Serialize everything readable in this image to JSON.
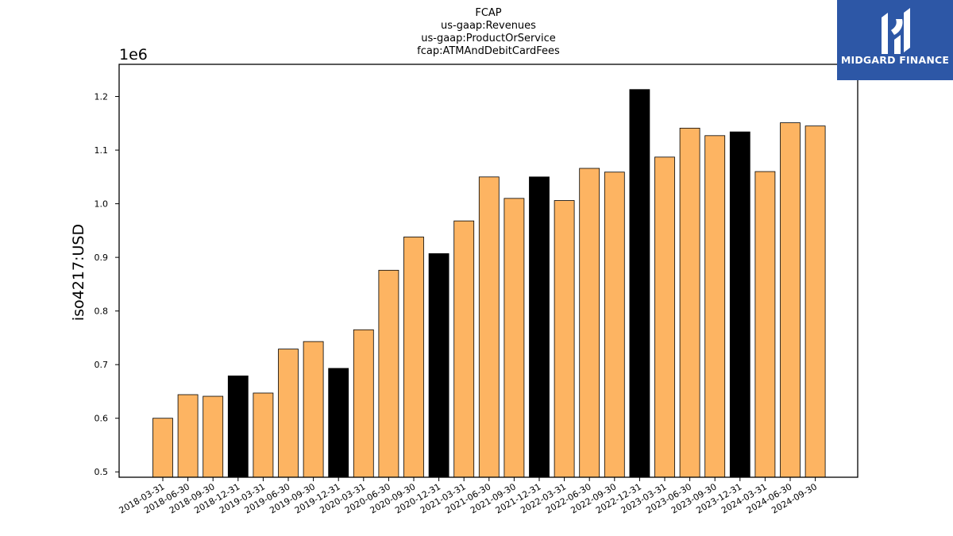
{
  "chart_data": {
    "type": "bar",
    "title": [
      "FCAP",
      "us-gaap:Revenues",
      "us-gaap:ProductOrService",
      "fcap:ATMAndDebitCardFees"
    ],
    "ylabel": "iso4217:USD",
    "xlabel": "",
    "offset_label": "1e6",
    "ylim": [
      490000,
      1260000
    ],
    "yticks": [
      {
        "value": 500000,
        "label": "0.5"
      },
      {
        "value": 600000,
        "label": "0.6"
      },
      {
        "value": 700000,
        "label": "0.7"
      },
      {
        "value": 800000,
        "label": "0.8"
      },
      {
        "value": 900000,
        "label": "0.9"
      },
      {
        "value": 1000000,
        "label": "1.0"
      },
      {
        "value": 1100000,
        "label": "1.1"
      },
      {
        "value": 1200000,
        "label": "1.2"
      }
    ],
    "categories": [
      "2018-03-31",
      "2018-06-30",
      "2018-09-30",
      "2018-12-31",
      "2019-03-31",
      "2019-06-30",
      "2019-09-30",
      "2019-12-31",
      "2020-03-31",
      "2020-06-30",
      "2020-09-30",
      "2020-12-31",
      "2021-03-31",
      "2021-06-30",
      "2021-09-30",
      "2021-12-31",
      "2022-03-31",
      "2022-06-30",
      "2022-09-30",
      "2022-12-31",
      "2023-03-31",
      "2023-06-30",
      "2023-09-30",
      "2023-12-31",
      "2024-03-31",
      "2024-06-30",
      "2024-09-30"
    ],
    "values": [
      600000,
      644000,
      641000,
      679000,
      647000,
      729000,
      743000,
      693000,
      765000,
      876000,
      938000,
      907000,
      968000,
      1050000,
      1010000,
      1050000,
      1006000,
      1066000,
      1059000,
      1213000,
      1087000,
      1141000,
      1127000,
      1134000,
      1060000,
      1151000,
      1145000
    ],
    "highlight": [
      false,
      false,
      false,
      true,
      false,
      false,
      false,
      true,
      false,
      false,
      false,
      true,
      false,
      false,
      false,
      true,
      false,
      false,
      false,
      true,
      false,
      false,
      false,
      true,
      false,
      false,
      false
    ],
    "colors": {
      "bar": "#fdb462",
      "highlight": "#000000",
      "edge": "#000000"
    },
    "grid": false,
    "legend": "none"
  },
  "logo": {
    "text": "MIDGARD FINANCE",
    "background": "#2d57a6",
    "icon": "midgard-logo-mark-icon"
  }
}
